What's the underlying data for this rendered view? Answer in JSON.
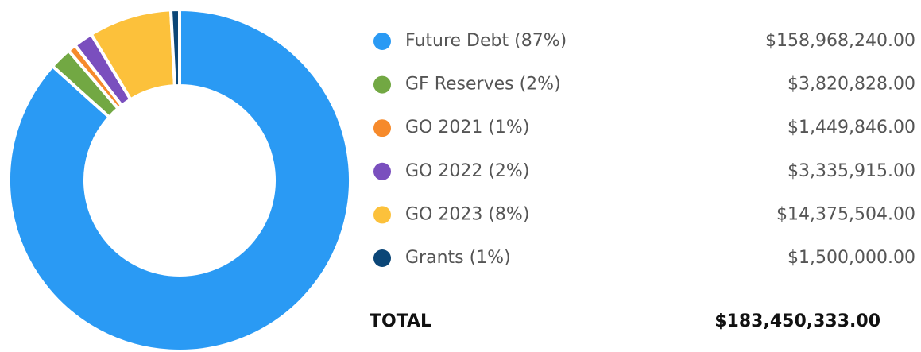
{
  "chart_data": {
    "type": "donut",
    "categories": [
      "Future Debt (87%)",
      "GF Reserves (2%)",
      "GO 2021 (1%)",
      "GO 2022 (2%)",
      "GO 2023 (8%)",
      "Grants (1%)"
    ],
    "values": [
      158968240,
      3820828,
      1449846,
      3335915,
      14375504,
      1500000
    ],
    "value_labels": [
      "$158,968,240.00",
      "$3,820,828.00",
      "$1,449,846.00",
      "$3,335,915.00",
      "$14,375,504.00",
      "$1,500,000.00"
    ],
    "colors": [
      "#2a9af4",
      "#72a843",
      "#f68a2b",
      "#7a4fbe",
      "#fcc13b",
      "#0b4677"
    ],
    "total_label": "TOTAL",
    "total_value_label": "$183,450,333.00"
  }
}
